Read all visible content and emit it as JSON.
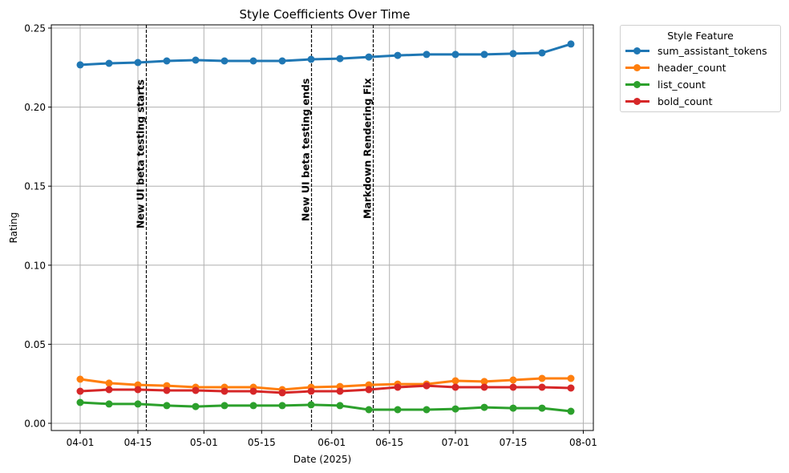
{
  "chart_data": {
    "type": "line",
    "title": "Style Coefficients Over Time",
    "xlabel": "Date (2025)",
    "ylabel": "Rating",
    "ylim": [
      -0.004,
      0.251
    ],
    "yticks": [
      0.0,
      0.05,
      0.1,
      0.15,
      0.2,
      0.25
    ],
    "ytick_labels": [
      "0.00",
      "0.05",
      "0.10",
      "0.15",
      "0.20",
      "0.25"
    ],
    "xtick_labels": [
      "04-01",
      "04-15",
      "05-01",
      "05-15",
      "06-01",
      "06-15",
      "07-01",
      "07-15",
      "08-01"
    ],
    "xtick_dates": [
      "2025-04-01",
      "2025-04-15",
      "2025-05-01",
      "2025-05-15",
      "2025-06-01",
      "2025-06-15",
      "2025-07-01",
      "2025-07-15",
      "2025-08-01"
    ],
    "grid": true,
    "legend_title": "Style Feature",
    "legend_position": "outside upper right",
    "x": [
      "2025-04-01",
      "2025-04-08",
      "2025-04-15",
      "2025-04-22",
      "2025-04-29",
      "2025-05-06",
      "2025-05-13",
      "2025-05-20",
      "2025-05-27",
      "2025-06-03",
      "2025-06-10",
      "2025-06-17",
      "2025-06-24",
      "2025-07-01",
      "2025-07-08",
      "2025-07-15",
      "2025-07-22",
      "2025-07-29"
    ],
    "series": [
      {
        "name": "sum_assistant_tokens",
        "color": "#1f77b4",
        "values": [
          0.2267,
          0.2277,
          0.2282,
          0.2292,
          0.2297,
          0.2292,
          0.2292,
          0.2292,
          0.2302,
          0.2307,
          0.2317,
          0.2327,
          0.2333,
          0.2333,
          0.2333,
          0.2338,
          0.2343,
          0.2399
        ]
      },
      {
        "name": "header_count",
        "color": "#ff7f0e",
        "values": [
          0.0279,
          0.0254,
          0.0243,
          0.0238,
          0.0228,
          0.0228,
          0.0228,
          0.0213,
          0.0228,
          0.0233,
          0.0243,
          0.0248,
          0.0248,
          0.0269,
          0.0264,
          0.0274,
          0.0284,
          0.0284
        ]
      },
      {
        "name": "list_count",
        "color": "#2ca02c",
        "values": [
          0.0132,
          0.0122,
          0.0122,
          0.0112,
          0.0106,
          0.0112,
          0.0112,
          0.0112,
          0.0117,
          0.0112,
          0.0086,
          0.0086,
          0.0086,
          0.0091,
          0.0101,
          0.0096,
          0.0096,
          0.0076
        ]
      },
      {
        "name": "bold_count",
        "color": "#d62728",
        "values": [
          0.0203,
          0.0213,
          0.0213,
          0.0208,
          0.0208,
          0.0203,
          0.0203,
          0.0193,
          0.0203,
          0.0203,
          0.0213,
          0.0228,
          0.0238,
          0.0228,
          0.0228,
          0.0228,
          0.0228,
          0.0223
        ]
      }
    ],
    "annotations": [
      {
        "date": "2025-04-17",
        "label": "New UI beta testing starts",
        "style": "dashed vertical line"
      },
      {
        "date": "2025-05-27",
        "label": "New UI beta testing ends",
        "style": "dashed vertical line"
      },
      {
        "date": "2025-06-11",
        "label": "Markdown Rendering Fix",
        "style": "dashed vertical line"
      }
    ]
  }
}
